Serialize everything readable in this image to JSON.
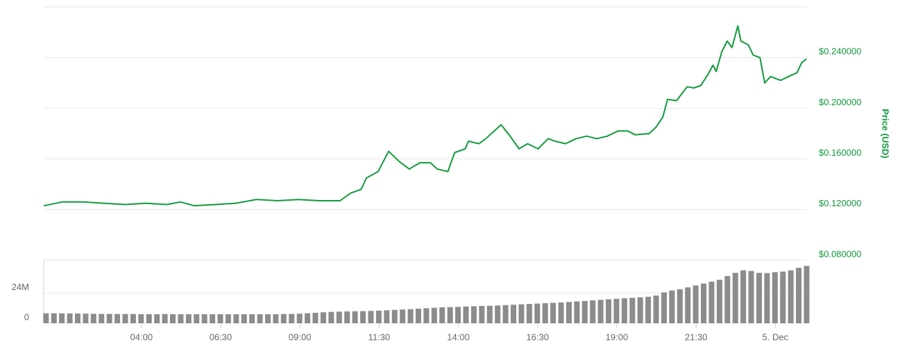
{
  "chart_data": [
    {
      "type": "line",
      "y_label": "Price (USD)",
      "color": "#0e9a3a",
      "x": [
        55,
        90,
        130,
        169,
        209,
        248,
        288,
        314,
        340,
        380,
        419,
        458,
        498,
        537,
        577,
        616,
        636,
        656,
        666,
        688,
        708,
        728,
        747,
        767,
        787,
        800,
        820,
        833,
        853,
        859,
        879,
        892,
        905,
        921,
        938,
        955,
        971,
        991,
        1010,
        1023,
        1043,
        1063,
        1083,
        1102,
        1122,
        1142,
        1161,
        1175,
        1201,
        1214,
        1227,
        1236,
        1253,
        1273,
        1286,
        1299,
        1313,
        1322,
        1328,
        1339,
        1349,
        1358,
        1369,
        1375,
        1389,
        1398,
        1411,
        1420,
        1431,
        1450,
        1470,
        1481,
        1490,
        1499
      ],
      "series": [
        {
          "name": "Price",
          "color": "#0e9a3a",
          "values": [
            0.123,
            0.126,
            0.126,
            0.125,
            0.124,
            0.125,
            0.124,
            0.126,
            0.123,
            0.124,
            0.125,
            0.128,
            0.127,
            0.128,
            0.127,
            0.127,
            0.133,
            0.136,
            0.145,
            0.15,
            0.166,
            0.158,
            0.152,
            0.157,
            0.157,
            0.152,
            0.15,
            0.165,
            0.168,
            0.174,
            0.172,
            0.176,
            0.181,
            0.187,
            0.178,
            0.168,
            0.172,
            0.168,
            0.176,
            0.174,
            0.172,
            0.176,
            0.178,
            0.176,
            0.178,
            0.182,
            0.182,
            0.179,
            0.18,
            0.185,
            0.193,
            0.207,
            0.206,
            0.217,
            0.216,
            0.218,
            0.227,
            0.234,
            0.229,
            0.245,
            0.253,
            0.248,
            0.265,
            0.253,
            0.25,
            0.242,
            0.24,
            0.22,
            0.225,
            0.222,
            0.226,
            0.228,
            0.236,
            0.239
          ]
        }
      ],
      "xlim": [
        55,
        1500
      ],
      "ylim": [
        0.08,
        0.28
      ],
      "yticks": [
        {
          "value": 0.08,
          "label": "$0.080000"
        },
        {
          "value": 0.12,
          "label": "$0.120000"
        },
        {
          "value": 0.16,
          "label": "$0.160000"
        },
        {
          "value": 0.2,
          "label": "$0.200000"
        },
        {
          "value": 0.24,
          "label": "$0.240000"
        }
      ],
      "grid": true
    },
    {
      "type": "bar",
      "color": "#8c8c8c",
      "x": [
        60,
        75,
        90,
        105,
        120,
        135,
        150,
        165,
        180,
        195,
        210,
        225,
        240,
        255,
        270,
        285,
        300,
        315,
        330,
        345,
        360,
        375,
        390,
        405,
        420,
        435,
        450,
        465,
        480,
        495,
        510,
        525,
        540,
        555,
        570,
        585,
        600,
        615,
        630,
        645,
        660,
        675,
        690,
        705,
        720,
        735,
        750,
        765,
        780,
        795,
        810,
        825,
        840,
        855,
        870,
        885,
        900,
        915,
        930,
        945,
        960,
        975,
        990,
        1005,
        1020,
        1035,
        1050,
        1065,
        1080,
        1095,
        1110,
        1125,
        1140,
        1155,
        1170,
        1185,
        1200,
        1215,
        1230,
        1245,
        1260,
        1275,
        1290,
        1305,
        1320,
        1335,
        1350,
        1365,
        1380,
        1395,
        1410,
        1425,
        1440,
        1455,
        1470,
        1485,
        1500
      ],
      "values": [
        7900000,
        7900000,
        7800000,
        7800000,
        7700000,
        7600000,
        7500000,
        7400000,
        7400000,
        7300000,
        7300000,
        7300000,
        7200000,
        7200000,
        7200000,
        7300000,
        7200000,
        7100000,
        7100000,
        7100000,
        7100000,
        7100000,
        7200000,
        7100000,
        7100000,
        7100000,
        7200000,
        7100000,
        7100000,
        7200000,
        7300000,
        7400000,
        7600000,
        7900000,
        8300000,
        8700000,
        9000000,
        9200000,
        9400000,
        9500000,
        9600000,
        9800000,
        10000000,
        10300000,
        10600000,
        10900000,
        11200000,
        11600000,
        11900000,
        12300000,
        12600000,
        12800000,
        13000000,
        13300000,
        13500000,
        13700000,
        13900000,
        14100000,
        14400000,
        14700000,
        15000000,
        15300000,
        15600000,
        15900000,
        16200000,
        16500000,
        16900000,
        17300000,
        17700000,
        18200000,
        18600000,
        19000000,
        19400000,
        19800000,
        20200000,
        20600000,
        21000000,
        22000000,
        24500000,
        26000000,
        27000000,
        28500000,
        30000000,
        31500000,
        33000000,
        34500000,
        37500000,
        40000000,
        42000000,
        41500000,
        40000000,
        39800000,
        40500000,
        41000000,
        42000000,
        44000000,
        45500000
      ],
      "xlim": [
        55,
        1500
      ],
      "xticks": [
        {
          "value": 240,
          "label": "04:00"
        },
        {
          "value": 390,
          "label": "06:30"
        },
        {
          "value": 540,
          "label": "09:00"
        },
        {
          "value": 690,
          "label": "11:30"
        },
        {
          "value": 840,
          "label": "14:00"
        },
        {
          "value": 990,
          "label": "16:30"
        },
        {
          "value": 1140,
          "label": "19:00"
        },
        {
          "value": 1290,
          "label": "21:30"
        },
        {
          "value": 1440,
          "label": "5. Dec"
        }
      ],
      "ylim": [
        0,
        50000000
      ],
      "yticks": [
        0,
        {
          "value": 24000000,
          "label": "24M"
        }
      ],
      "grid": true
    }
  ]
}
